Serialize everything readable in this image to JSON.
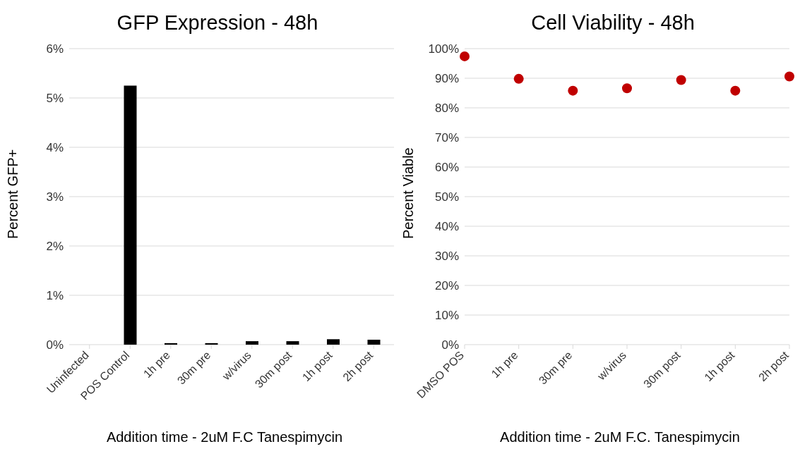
{
  "chart_data": [
    {
      "type": "bar",
      "title": "GFP Expression - 48h",
      "xlabel": "Addition time - 2uM F.C Tanespimycin",
      "ylabel": "Percent GFP+",
      "categories": [
        "Uninfected",
        "POS Control",
        "1h pre",
        "30m pre",
        "w/virus",
        "30m post",
        "1h post",
        "2h post"
      ],
      "values": [
        0,
        5.25,
        0.03,
        0.03,
        0.07,
        0.07,
        0.11,
        0.1
      ],
      "color": "#000000",
      "ylim": [
        0,
        6
      ],
      "yticks": [
        {
          "value": 0,
          "label": "0%"
        },
        {
          "value": 1,
          "label": "1%"
        },
        {
          "value": 2,
          "label": "2%"
        },
        {
          "value": 3,
          "label": "3%"
        },
        {
          "value": 4,
          "label": "4%"
        },
        {
          "value": 5,
          "label": "5%"
        },
        {
          "value": 6,
          "label": "6%"
        }
      ],
      "grid": "y"
    },
    {
      "type": "scatter",
      "title": "Cell Viability - 48h",
      "xlabel": "Addition time - 2uM F.C. Tanespimycin",
      "ylabel": "Percent Viable",
      "categories": [
        "DMSO POS",
        "1h pre",
        "30m pre",
        "w/virus",
        "30m post",
        "1h post",
        "2h post"
      ],
      "values": [
        97.4,
        89.8,
        85.8,
        86.6,
        89.4,
        85.8,
        90.6
      ],
      "color": "#c00000",
      "marker": "circle",
      "ylim": [
        0,
        100
      ],
      "yticks": [
        {
          "value": 0,
          "label": "0%"
        },
        {
          "value": 10,
          "label": "10%"
        },
        {
          "value": 20,
          "label": "20%"
        },
        {
          "value": 30,
          "label": "30%"
        },
        {
          "value": 40,
          "label": "40%"
        },
        {
          "value": 50,
          "label": "50%"
        },
        {
          "value": 60,
          "label": "60%"
        },
        {
          "value": 70,
          "label": "70%"
        },
        {
          "value": 80,
          "label": "80%"
        },
        {
          "value": 90,
          "label": "90%"
        },
        {
          "value": 100,
          "label": "100%"
        }
      ],
      "grid": "y"
    }
  ]
}
